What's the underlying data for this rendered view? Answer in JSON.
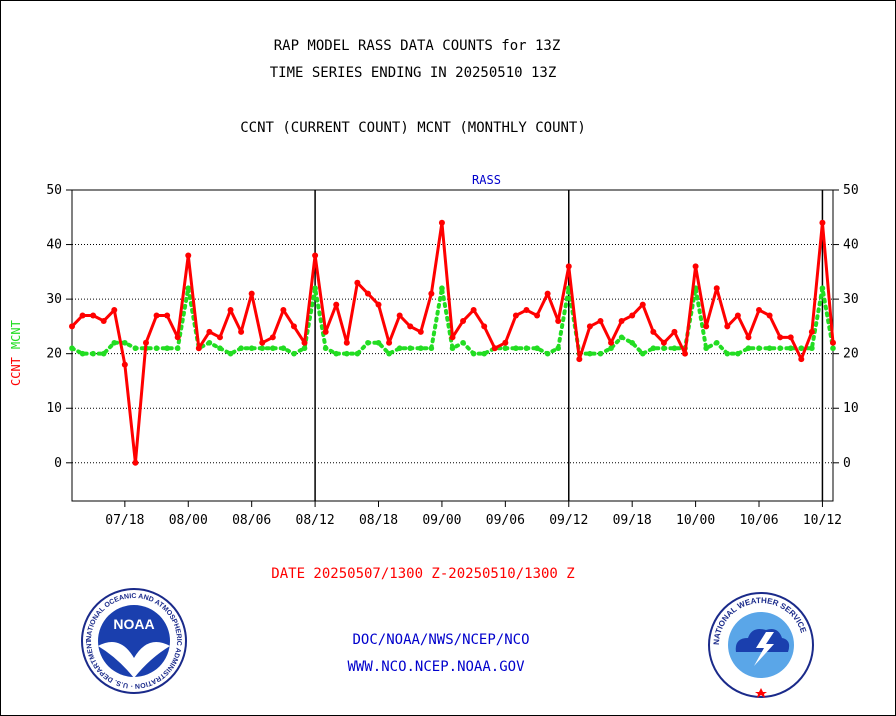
{
  "header": {
    "title_line1": "RAP MODEL RASS DATA COUNTS for 13Z",
    "title_line2": "TIME SERIES ENDING IN 20250510 13Z",
    "legend_text": "CCNT (CURRENT COUNT) MCNT (MONTHLY COUNT)"
  },
  "footer": {
    "date_range": "DATE 20250507/1300 Z-20250510/1300 Z",
    "org_line1": "DOC/NOAA/NWS/NCEP/NCO",
    "org_line2": "WWW.NCO.NCEP.NOAA.GOV",
    "noaa_logo_text": "NOAA",
    "noaa_seal_ring_text": "NATIONAL OCEANIC AND ATMOSPHERIC ADMINISTRATION · U.S. DEPARTMENT OF COMMERCE",
    "nws_seal_ring_text": "NATIONAL WEATHER SERVICE"
  },
  "colors": {
    "ccnt": "#ff0000",
    "mcnt": "#22dd22",
    "frame": "#000000",
    "title_blue": "#0000cc"
  },
  "chart_data": {
    "type": "line",
    "title": "RASS",
    "ylabel_parts": [
      "CCNT",
      "MCNT"
    ],
    "ylim": [
      -7,
      50
    ],
    "y_ticks": [
      0,
      10,
      20,
      30,
      40,
      50
    ],
    "x_tick_labels": [
      "07/18",
      "08/00",
      "08/06",
      "08/12",
      "08/18",
      "09/00",
      "09/06",
      "09/12",
      "09/18",
      "10/00",
      "10/06",
      "10/12"
    ],
    "x_tick_hours": [
      5,
      11,
      17,
      23,
      29,
      35,
      41,
      47,
      53,
      59,
      65,
      71
    ],
    "x_range_hours": [
      0,
      72
    ],
    "day_separators_hours": [
      23,
      47,
      71
    ],
    "grid": true,
    "series": [
      {
        "name": "CCNT",
        "values": [
          25,
          27,
          27,
          26,
          28,
          18,
          0,
          22,
          27,
          27,
          23,
          38,
          21,
          24,
          23,
          28,
          24,
          31,
          22,
          23,
          28,
          25,
          22,
          38,
          24,
          29,
          22,
          33,
          31,
          29,
          22,
          27,
          25,
          24,
          31,
          44,
          23,
          26,
          28,
          25,
          21,
          22,
          27,
          28,
          27,
          31,
          26,
          36,
          19,
          25,
          26,
          22,
          26,
          27,
          29,
          24,
          22,
          24,
          20,
          36,
          25,
          32,
          25,
          27,
          23,
          28,
          27,
          23,
          23,
          19,
          24,
          44,
          22
        ]
      },
      {
        "name": "MCNT",
        "values": [
          21,
          20,
          20,
          20,
          22,
          22,
          21,
          21,
          21,
          21,
          21,
          32,
          21,
          22,
          21,
          20,
          21,
          21,
          21,
          21,
          21,
          20,
          21,
          32,
          21,
          20,
          20,
          20,
          22,
          22,
          20,
          21,
          21,
          21,
          21,
          32,
          21,
          22,
          20,
          20,
          21,
          21,
          21,
          21,
          21,
          20,
          21,
          32,
          20,
          20,
          20,
          21,
          23,
          22,
          20,
          21,
          21,
          21,
          21,
          32,
          21,
          22,
          20,
          20,
          21,
          21,
          21,
          21,
          21,
          21,
          21,
          32,
          21
        ]
      }
    ]
  }
}
